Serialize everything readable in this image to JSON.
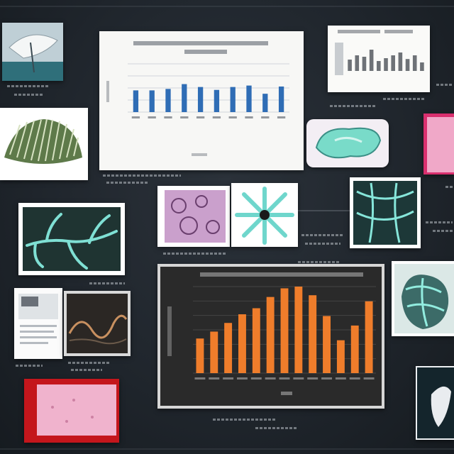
{
  "board": {
    "items": [
      {
        "name": "photo-leaf-sculpture"
      },
      {
        "name": "bar-chart-light-large"
      },
      {
        "name": "bar-chart-light-small"
      },
      {
        "name": "image-ribbed-shell"
      },
      {
        "name": "image-blob-3d"
      },
      {
        "name": "image-pink-panel"
      },
      {
        "name": "image-vein-network-left"
      },
      {
        "name": "image-purple-texture"
      },
      {
        "name": "image-radial-flower"
      },
      {
        "name": "image-vein-network-right"
      },
      {
        "name": "image-document-page"
      },
      {
        "name": "image-wave-dark"
      },
      {
        "name": "bar-chart-dark-orange"
      },
      {
        "name": "image-heart-structure"
      },
      {
        "name": "image-red-pink-panel"
      },
      {
        "name": "photo-white-form"
      }
    ]
  },
  "chart_data": [
    {
      "type": "bar",
      "title": "",
      "xlabel": "",
      "ylabel": "",
      "style": "light background, blue bars, horizontal grid on",
      "values": [
        0.45,
        0.45,
        0.48,
        0.58,
        0.52,
        0.46,
        0.52,
        0.55,
        0.38,
        0.53
      ],
      "ylim": [
        0,
        1
      ],
      "bar_color": "#2f6db5"
    },
    {
      "type": "bar",
      "title": "",
      "style": "light background, grey bars",
      "values": [
        0.4,
        0.55,
        0.5,
        0.75,
        0.35,
        0.45,
        0.55,
        0.65,
        0.42,
        0.55,
        0.3
      ],
      "ylim": [
        0,
        1
      ],
      "bar_color": "#6e7277"
    },
    {
      "type": "bar",
      "title": "",
      "xlabel": "",
      "ylabel": "",
      "style": "dark background, orange bars, horizontal grid on",
      "values": [
        0.4,
        0.48,
        0.58,
        0.68,
        0.75,
        0.88,
        0.98,
        1.0,
        0.9,
        0.66,
        0.38,
        0.55,
        0.83
      ],
      "ylim": [
        0,
        1
      ],
      "bar_color": "#ef7d2b"
    }
  ]
}
